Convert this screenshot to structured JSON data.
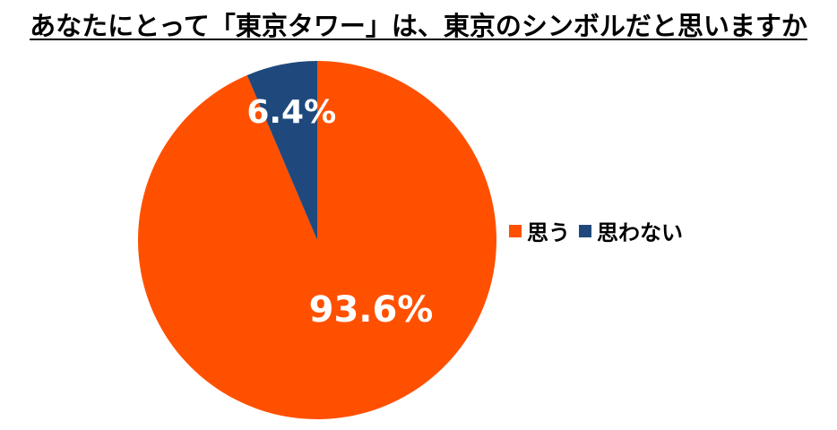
{
  "chart_data": {
    "type": "pie",
    "title": "あなたにとって「東京タワー」は、東京のシンボルだと思いますか",
    "categories": [
      "思う",
      "思わない"
    ],
    "values": [
      93.6,
      6.4
    ],
    "labels": [
      "93.6%",
      "6.4%"
    ],
    "colors": [
      "#ff5000",
      "#1f497d"
    ],
    "legend_position": "right",
    "start_angle": "12-o'clock, clockwise"
  }
}
